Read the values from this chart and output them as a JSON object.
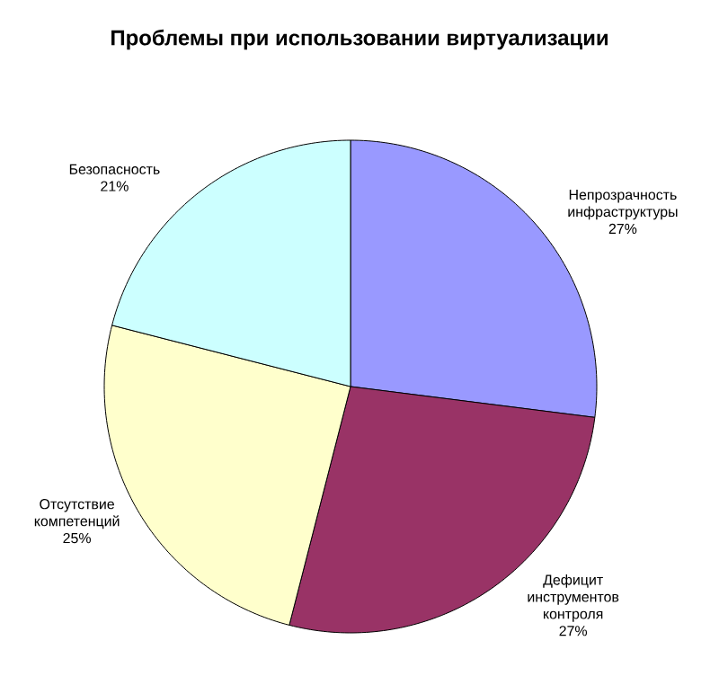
{
  "chart_data": {
    "type": "pie",
    "title": "Проблемы при использовании виртуализации",
    "categories": [
      "Непрозрачность инфраструктуры",
      "Дефицит инструментов контроля",
      "Отсутствие компетенций",
      "Безопасность"
    ],
    "values": [
      27,
      27,
      25,
      21
    ],
    "colors": [
      "#9999ff",
      "#993366",
      "#ffffcc",
      "#ccffff"
    ],
    "value_labels": [
      "27%",
      "27%",
      "25%",
      "21%"
    ]
  }
}
